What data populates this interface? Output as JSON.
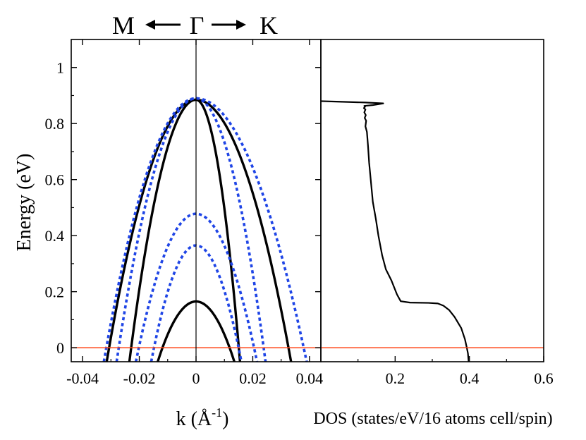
{
  "colors": {
    "solid_band": "#000000",
    "dotted_band": "#1f45e6",
    "fermi_line": "#ff4a1c",
    "axis": "#000000"
  },
  "direction_labels": {
    "left": "M",
    "center": "Γ",
    "right": "K"
  },
  "chart_data": [
    {
      "type": "line",
      "title": "",
      "xlabel": "k (Å",
      "xlabel_superscript": "-1",
      "xlabel_suffix": ")",
      "ylabel": "Energy (eV)",
      "xlim": [
        -0.044,
        0.044
      ],
      "ylim": [
        -0.05,
        1.1
      ],
      "xticks": [
        -0.04,
        -0.02,
        0,
        0.02,
        0.04
      ],
      "xtick_labels": [
        "-0.04",
        "-0.02",
        "0",
        "0.02",
        "0.04"
      ],
      "yticks": [
        0,
        0.2,
        0.4,
        0.6,
        0.8,
        1
      ],
      "ytick_labels": [
        "0",
        "0.2",
        "0.4",
        "0.6",
        "0.8",
        "1"
      ],
      "fermi_level": 0,
      "series": [
        {
          "name": "solid-outer",
          "style": "solid",
          "top": 0.885,
          "k_left": -0.0315,
          "k_right": 0.0335,
          "e_at_ends": -0.05
        },
        {
          "name": "solid-middle",
          "style": "solid",
          "top": 0.885,
          "k_left": -0.0235,
          "k_right": 0.0155,
          "e_at_ends": -0.05
        },
        {
          "name": "solid-inner",
          "style": "solid",
          "top": 0.165,
          "k_left": -0.0135,
          "k_right": 0.0135,
          "e_at_ends": -0.05
        },
        {
          "name": "dotted-outer",
          "style": "dotted",
          "top": 0.89,
          "k_left": -0.0325,
          "k_right": 0.039,
          "e_at_ends": -0.05
        },
        {
          "name": "dotted-second",
          "style": "dotted",
          "top": 0.89,
          "k_left": -0.028,
          "k_right": 0.0245,
          "e_at_ends": -0.05
        },
        {
          "name": "dotted-upper-small",
          "style": "dotted",
          "top": 0.478,
          "k_left": -0.0212,
          "k_right": 0.0215,
          "e_at_ends": -0.05
        },
        {
          "name": "dotted-lower-small",
          "style": "dotted",
          "top": 0.365,
          "k_left": -0.0158,
          "k_right": 0.016,
          "e_at_ends": -0.05
        }
      ]
    },
    {
      "type": "line",
      "title": "",
      "xlabel": "DOS (states/eV/16 atoms cell/spin)",
      "xlim": [
        0,
        0.6
      ],
      "ylim": [
        -0.05,
        1.1
      ],
      "xticks": [
        0.2,
        0.4,
        0.6
      ],
      "xtick_labels": [
        "0.2",
        "0.4",
        "0.6"
      ],
      "fermi_level": 0,
      "series": [
        {
          "name": "DOS",
          "x": [
            0.398,
            0.396,
            0.393,
            0.388,
            0.378,
            0.36,
            0.345,
            0.33,
            0.315,
            0.29,
            0.24,
            0.215,
            0.205,
            0.19,
            0.175,
            0.165,
            0.155,
            0.148,
            0.14,
            0.135,
            0.13,
            0.127,
            0.124,
            0.12,
            0.122,
            0.118,
            0.121,
            0.117,
            0.12,
            0.116,
            0.119,
            0.117,
            0.14,
            0.168,
            0.12,
            0.05,
            0.0
          ],
          "y": [
            -0.05,
            -0.02,
            0.0,
            0.03,
            0.07,
            0.11,
            0.135,
            0.15,
            0.158,
            0.16,
            0.161,
            0.166,
            0.19,
            0.24,
            0.28,
            0.33,
            0.4,
            0.46,
            0.52,
            0.59,
            0.66,
            0.72,
            0.77,
            0.79,
            0.81,
            0.82,
            0.83,
            0.84,
            0.85,
            0.855,
            0.86,
            0.863,
            0.866,
            0.872,
            0.875,
            0.878,
            0.88
          ]
        }
      ]
    }
  ]
}
